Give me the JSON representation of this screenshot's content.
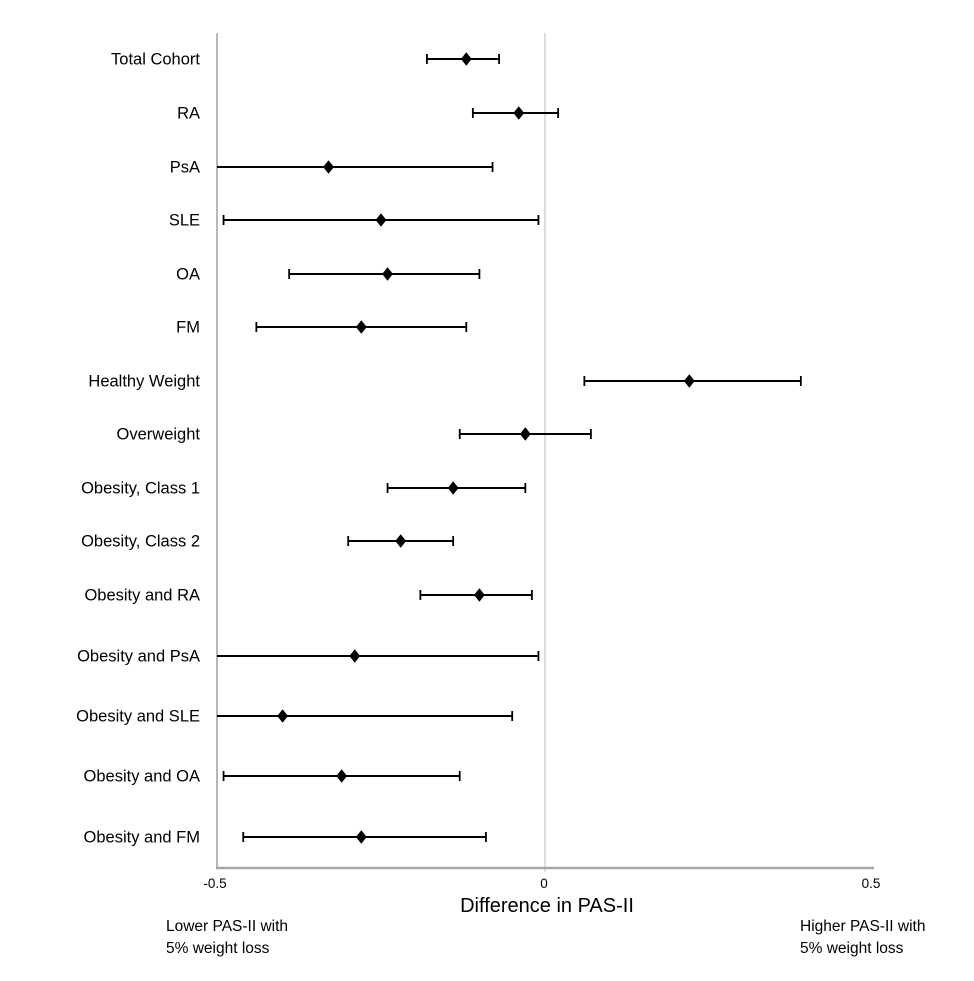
{
  "figure": {
    "xlabel": "Difference in PAS-II",
    "tick_labels": [
      "-0.5",
      "0",
      "0.5"
    ],
    "caption_left_line1": "Lower PAS-II with",
    "caption_left_line2": "5% weight loss",
    "caption_right_line1": "Higher PAS-II with",
    "caption_right_line2": "5% weight loss"
  },
  "colors": {
    "marker": "#000000",
    "error_bar": "#000000",
    "axis_line": "#a6a6a6",
    "zero_reference_line": "#d6d6d6",
    "text": "#000000",
    "background": "#ffffff"
  },
  "chart_data": {
    "type": "scatter",
    "variant": "horizontal-forest-plot-with-95CI-error-bars",
    "title": "",
    "xlabel": "Difference in PAS-II",
    "ylabel": "",
    "xlim": [
      -0.5,
      0.5
    ],
    "x_ticks": [
      -0.5,
      0,
      0.5
    ],
    "x_tick_labels": [
      "-0.5",
      "0",
      "0.5"
    ],
    "reference_line_x": 0,
    "grid": false,
    "legend": false,
    "marker_shape": "diamond",
    "annotations": {
      "left_of_axis": "Lower PAS-II with 5% weight loss",
      "right_of_axis": "Higher PAS-II with 5% weight loss"
    },
    "categories": [
      "Total Cohort",
      "RA",
      "PsA",
      "SLE",
      "OA",
      "FM",
      "Healthy Weight",
      "Overweight",
      "Obesity, Class 1",
      "Obesity, Class 2",
      "Obesity and RA",
      "Obesity and PsA",
      "Obesity and SLE",
      "Obesity and OA",
      "Obesity and FM"
    ],
    "series": [
      {
        "name": "Difference in PAS-II with 5% weight loss (point estimate, 95% CI)",
        "points": [
          {
            "label": "Total Cohort",
            "value": -0.12,
            "ci_low": -0.18,
            "ci_high": -0.07,
            "ci_low_at_axis_limit": false
          },
          {
            "label": "RA",
            "value": -0.04,
            "ci_low": -0.11,
            "ci_high": 0.02,
            "ci_low_at_axis_limit": false
          },
          {
            "label": "PsA",
            "value": -0.33,
            "ci_low": -0.5,
            "ci_high": -0.08,
            "ci_low_at_axis_limit": true
          },
          {
            "label": "SLE",
            "value": -0.25,
            "ci_low": -0.49,
            "ci_high": -0.01,
            "ci_low_at_axis_limit": false
          },
          {
            "label": "OA",
            "value": -0.24,
            "ci_low": -0.39,
            "ci_high": -0.1,
            "ci_low_at_axis_limit": false
          },
          {
            "label": "FM",
            "value": -0.28,
            "ci_low": -0.44,
            "ci_high": -0.12,
            "ci_low_at_axis_limit": false
          },
          {
            "label": "Healthy Weight",
            "value": 0.22,
            "ci_low": 0.06,
            "ci_high": 0.39,
            "ci_low_at_axis_limit": false
          },
          {
            "label": "Overweight",
            "value": -0.03,
            "ci_low": -0.13,
            "ci_high": 0.07,
            "ci_low_at_axis_limit": false
          },
          {
            "label": "Obesity, Class 1",
            "value": -0.14,
            "ci_low": -0.24,
            "ci_high": -0.03,
            "ci_low_at_axis_limit": false
          },
          {
            "label": "Obesity, Class 2",
            "value": -0.22,
            "ci_low": -0.3,
            "ci_high": -0.14,
            "ci_low_at_axis_limit": false
          },
          {
            "label": "Obesity and RA",
            "value": -0.1,
            "ci_low": -0.19,
            "ci_high": -0.02,
            "ci_low_at_axis_limit": false
          },
          {
            "label": "Obesity and PsA",
            "value": -0.29,
            "ci_low": -0.5,
            "ci_high": -0.01,
            "ci_low_at_axis_limit": true
          },
          {
            "label": "Obesity and SLE",
            "value": -0.4,
            "ci_low": -0.5,
            "ci_high": -0.05,
            "ci_low_at_axis_limit": true
          },
          {
            "label": "Obesity and OA",
            "value": -0.31,
            "ci_low": -0.49,
            "ci_high": -0.13,
            "ci_low_at_axis_limit": false
          },
          {
            "label": "Obesity and FM",
            "value": -0.28,
            "ci_low": -0.46,
            "ci_high": -0.09,
            "ci_low_at_axis_limit": false
          }
        ]
      }
    ]
  }
}
